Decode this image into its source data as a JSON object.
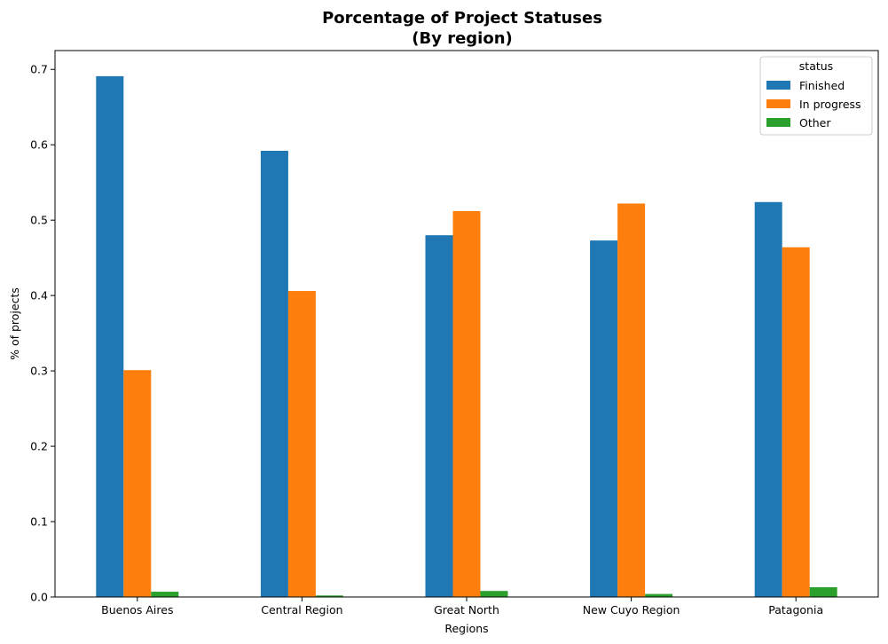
{
  "chart_data": {
    "type": "bar",
    "title": "Porcentage of Project Statuses",
    "subtitle": "(By region)",
    "xlabel": "Regions",
    "ylabel": "% of projects",
    "ylim": [
      0,
      0.725
    ],
    "yticks": [
      "0.0",
      "0.1",
      "0.2",
      "0.3",
      "0.4",
      "0.5",
      "0.6",
      "0.7"
    ],
    "categories": [
      "Buenos Aires",
      "Central Region",
      "Great North",
      "New Cuyo Region",
      "Patagonia"
    ],
    "legend_title": "status",
    "legend_position": "top-right",
    "grid": false,
    "series": [
      {
        "name": "Finished",
        "color": "#1f77b4",
        "values": [
          0.691,
          0.592,
          0.48,
          0.473,
          0.524
        ]
      },
      {
        "name": "In progress",
        "color": "#ff7f0e",
        "values": [
          0.301,
          0.406,
          0.512,
          0.522,
          0.464
        ]
      },
      {
        "name": "Other",
        "color": "#2ca02c",
        "values": [
          0.007,
          0.002,
          0.008,
          0.004,
          0.013
        ]
      }
    ]
  }
}
